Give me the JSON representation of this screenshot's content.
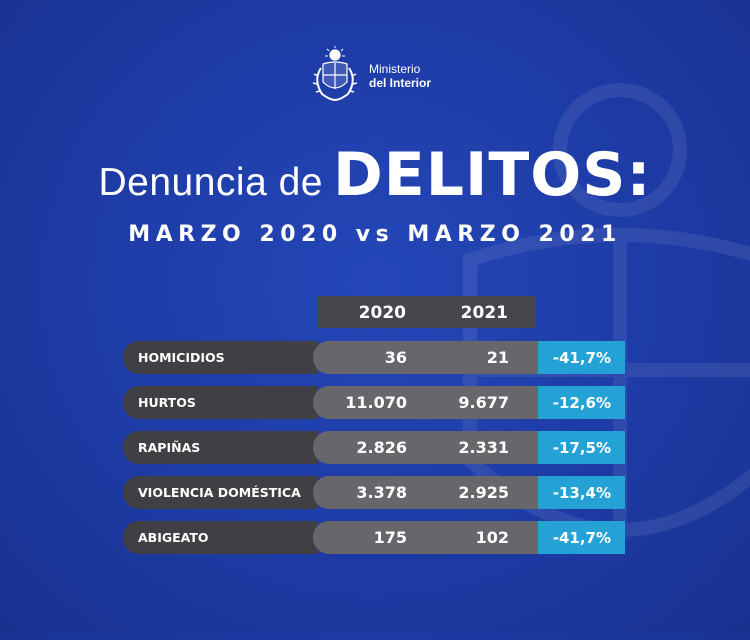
{
  "logo": {
    "line1": "Ministerio",
    "line2": "del Interior"
  },
  "title": {
    "light": "Denuncia de",
    "heavy": "DELITOS:"
  },
  "subtitle": "MARZO 2020 vs MARZO 2021",
  "colors": {
    "background": "#1f3ea8",
    "category_cell": "#3f3f44",
    "value_cell": "#66666b",
    "change_cell": "#24a2d6"
  },
  "chart_data": {
    "type": "table",
    "columns": [
      "2020",
      "2021"
    ],
    "rows": [
      {
        "category": "HOMICIDIOS",
        "v2020": "36",
        "v2021": "21",
        "change": "-41,7%"
      },
      {
        "category": "HURTOS",
        "v2020": "11.070",
        "v2021": "9.677",
        "change": "-12,6%"
      },
      {
        "category": "RAPIÑAS",
        "v2020": "2.826",
        "v2021": "2.331",
        "change": "-17,5%"
      },
      {
        "category": "VIOLENCIA DOMÉSTICA",
        "v2020": "3.378",
        "v2021": "2.925",
        "change": "-13,4%"
      },
      {
        "category": "ABIGEATO",
        "v2020": "175",
        "v2021": "102",
        "change": "-41,7%"
      }
    ]
  }
}
